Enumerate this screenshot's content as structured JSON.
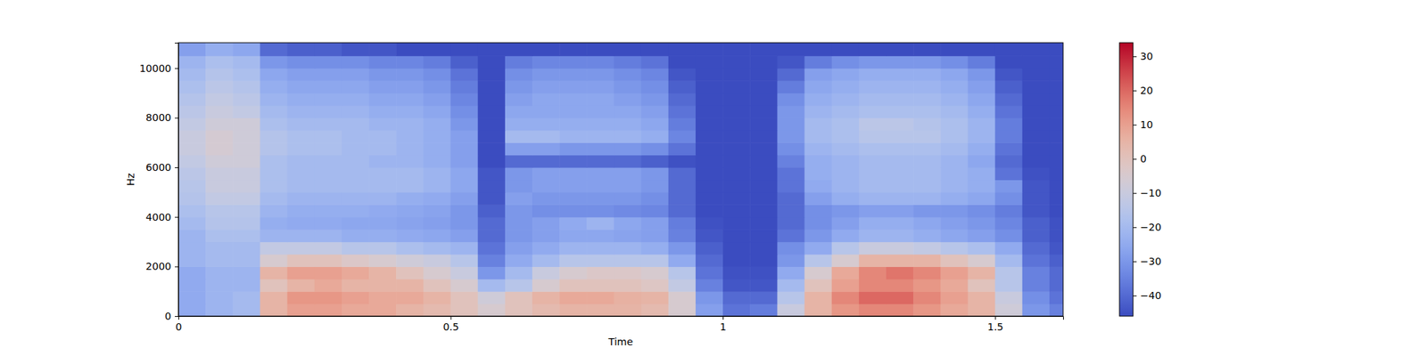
{
  "chart_data": {
    "type": "heatmap",
    "x_label": "Time",
    "y_label": "Hz",
    "xlim": [
      0,
      1.625
    ],
    "ylim": [
      0,
      11025
    ],
    "xticks": [
      0,
      0.5,
      1,
      1.5
    ],
    "yticks": [
      0,
      2000,
      4000,
      6000,
      8000,
      10000
    ],
    "color": "coolwarm",
    "time_bins": [
      0,
      0.05,
      0.1,
      0.15,
      0.2,
      0.25,
      0.3,
      0.35,
      0.4,
      0.45,
      0.5,
      0.55,
      0.6,
      0.65,
      0.7,
      0.75,
      0.8,
      0.85,
      0.9,
      0.95,
      1.0,
      1.05,
      1.1,
      1.15,
      1.2,
      1.25,
      1.3,
      1.35,
      1.4,
      1.45,
      1.5,
      1.55,
      1.6,
      1.625
    ],
    "freq_bins": [
      0,
      500,
      1000,
      1500,
      2000,
      2500,
      3000,
      3500,
      4000,
      4500,
      5000,
      5500,
      6000,
      6500,
      7000,
      7500,
      8000,
      8500,
      9000,
      9500,
      10000,
      10500,
      11025
    ],
    "z": [
      [
        -25,
        -22,
        -20,
        5,
        10,
        10,
        8,
        8,
        5,
        3,
        0,
        -5,
        0,
        3,
        5,
        5,
        5,
        3,
        -5,
        -28,
        -38,
        -36,
        -10,
        5,
        12,
        15,
        15,
        12,
        8,
        5,
        -8,
        -30,
        -35
      ],
      [
        -25,
        -22,
        -20,
        5,
        12,
        12,
        10,
        8,
        8,
        5,
        0,
        -8,
        0,
        5,
        8,
        8,
        6,
        5,
        -5,
        -30,
        -40,
        -40,
        -15,
        5,
        15,
        20,
        20,
        15,
        10,
        5,
        -10,
        -32,
        -38
      ],
      [
        -25,
        -22,
        -22,
        0,
        5,
        8,
        5,
        5,
        5,
        0,
        -5,
        -20,
        -15,
        -5,
        0,
        0,
        0,
        -2,
        -12,
        -35,
        -44,
        -44,
        -20,
        0,
        10,
        15,
        15,
        12,
        8,
        0,
        -15,
        -35,
        -40
      ],
      [
        -25,
        -22,
        -22,
        5,
        10,
        10,
        8,
        5,
        0,
        -5,
        -10,
        -30,
        -20,
        -10,
        -5,
        -3,
        -3,
        -5,
        -15,
        -38,
        -45,
        -45,
        -25,
        -5,
        8,
        15,
        18,
        15,
        10,
        5,
        -15,
        -35,
        -40
      ],
      [
        -22,
        -20,
        -20,
        -5,
        0,
        0,
        -3,
        -5,
        -8,
        -10,
        -15,
        -35,
        -25,
        -20,
        -15,
        -15,
        -15,
        -15,
        -25,
        -40,
        -46,
        -46,
        -30,
        -15,
        -5,
        5,
        5,
        5,
        0,
        -5,
        -20,
        -38,
        -42
      ],
      [
        -22,
        -20,
        -20,
        -12,
        -12,
        -12,
        -15,
        -15,
        -18,
        -20,
        -22,
        -38,
        -28,
        -25,
        -22,
        -22,
        -22,
        -24,
        -30,
        -42,
        -46,
        -46,
        -32,
        -25,
        -15,
        -10,
        -10,
        -12,
        -15,
        -18,
        -25,
        -40,
        -44
      ],
      [
        -22,
        -18,
        -18,
        -22,
        -22,
        -22,
        -24,
        -24,
        -25,
        -26,
        -28,
        -40,
        -30,
        -28,
        -26,
        -26,
        -27,
        -28,
        -35,
        -44,
        -46,
        -46,
        -38,
        -30,
        -25,
        -22,
        -22,
        -24,
        -26,
        -28,
        -32,
        -42,
        -45
      ],
      [
        -20,
        -16,
        -16,
        -24,
        -25,
        -25,
        -26,
        -26,
        -27,
        -28,
        -30,
        -40,
        -30,
        -28,
        -25,
        -22,
        -26,
        -28,
        -36,
        -45,
        -46,
        -46,
        -40,
        -32,
        -28,
        -24,
        -24,
        -26,
        -28,
        -30,
        -34,
        -42,
        -45
      ],
      [
        -18,
        -15,
        -15,
        -22,
        -24,
        -24,
        -24,
        -25,
        -26,
        -27,
        -30,
        -42,
        -30,
        -32,
        -32,
        -32,
        -33,
        -34,
        -40,
        -46,
        -46,
        -46,
        -40,
        -32,
        -30,
        -28,
        -28,
        -30,
        -30,
        -32,
        -36,
        -44,
        -46
      ],
      [
        -16,
        -12,
        -12,
        -20,
        -22,
        -22,
        -22,
        -22,
        -24,
        -25,
        -28,
        -44,
        -28,
        -30,
        -30,
        -30,
        -30,
        -32,
        -40,
        -46,
        -46,
        -46,
        -40,
        -28,
        -24,
        -22,
        -22,
        -22,
        -24,
        -26,
        -32,
        -44,
        -46
      ],
      [
        -15,
        -10,
        -10,
        -18,
        -20,
        -20,
        -20,
        -20,
        -20,
        -22,
        -26,
        -44,
        -30,
        -28,
        -28,
        -28,
        -28,
        -30,
        -40,
        -46,
        -46,
        -46,
        -38,
        -25,
        -22,
        -20,
        -20,
        -20,
        -22,
        -24,
        -30,
        -44,
        -46
      ],
      [
        -14,
        -10,
        -10,
        -18,
        -20,
        -20,
        -20,
        -20,
        -20,
        -22,
        -26,
        -44,
        -30,
        -28,
        -28,
        -28,
        -28,
        -30,
        -40,
        -46,
        -46,
        -46,
        -38,
        -24,
        -22,
        -20,
        -20,
        -20,
        -22,
        -24,
        -38,
        -45,
        -46
      ],
      [
        -12,
        -8,
        -8,
        -18,
        -20,
        -20,
        -20,
        -22,
        -22,
        -24,
        -28,
        -46,
        -40,
        -40,
        -40,
        -40,
        -40,
        -42,
        -45,
        -46,
        -46,
        -46,
        -35,
        -24,
        -22,
        -20,
        -20,
        -20,
        -22,
        -26,
        -40,
        -46,
        -46
      ],
      [
        -10,
        -6,
        -8,
        -16,
        -18,
        -18,
        -20,
        -20,
        -22,
        -24,
        -28,
        -46,
        -28,
        -28,
        -30,
        -30,
        -30,
        -32,
        -38,
        -46,
        -46,
        -46,
        -32,
        -22,
        -20,
        -18,
        -18,
        -18,
        -20,
        -24,
        -38,
        -46,
        -46
      ],
      [
        -10,
        -6,
        -8,
        -16,
        -18,
        -18,
        -20,
        -20,
        -22,
        -24,
        -28,
        -46,
        -20,
        -20,
        -22,
        -22,
        -22,
        -24,
        -34,
        -46,
        -46,
        -46,
        -30,
        -20,
        -18,
        -15,
        -15,
        -15,
        -18,
        -22,
        -36,
        -46,
        -46
      ],
      [
        -12,
        -8,
        -8,
        -18,
        -20,
        -20,
        -20,
        -22,
        -22,
        -24,
        -30,
        -46,
        -24,
        -24,
        -24,
        -24,
        -24,
        -26,
        -36,
        -46,
        -46,
        -46,
        -30,
        -20,
        -18,
        -14,
        -14,
        -16,
        -18,
        -22,
        -36,
        -46,
        -46
      ],
      [
        -14,
        -10,
        -12,
        -20,
        -22,
        -22,
        -22,
        -24,
        -24,
        -26,
        -32,
        -46,
        -26,
        -26,
        -26,
        -26,
        -26,
        -28,
        -38,
        -46,
        -46,
        -46,
        -30,
        -22,
        -20,
        -18,
        -18,
        -18,
        -20,
        -24,
        -38,
        -46,
        -46
      ],
      [
        -16,
        -12,
        -14,
        -22,
        -24,
        -24,
        -24,
        -26,
        -26,
        -28,
        -34,
        -46,
        -28,
        -26,
        -26,
        -26,
        -28,
        -30,
        -40,
        -46,
        -46,
        -46,
        -32,
        -24,
        -22,
        -20,
        -20,
        -20,
        -22,
        -26,
        -40,
        -46,
        -46
      ],
      [
        -18,
        -14,
        -16,
        -24,
        -26,
        -26,
        -26,
        -28,
        -28,
        -30,
        -36,
        -46,
        -30,
        -28,
        -28,
        -28,
        -30,
        -32,
        -42,
        -46,
        -46,
        -46,
        -36,
        -26,
        -24,
        -22,
        -22,
        -22,
        -24,
        -28,
        -42,
        -46,
        -46
      ],
      [
        -20,
        -16,
        -18,
        -26,
        -28,
        -28,
        -28,
        -30,
        -30,
        -32,
        -38,
        -46,
        -32,
        -30,
        -30,
        -30,
        -32,
        -34,
        -44,
        -46,
        -46,
        -46,
        -40,
        -28,
        -26,
        -24,
        -24,
        -24,
        -26,
        -30,
        -44,
        -46,
        -46
      ],
      [
        -22,
        -18,
        -20,
        -30,
        -32,
        -32,
        -32,
        -34,
        -34,
        -36,
        -42,
        -46,
        -36,
        -34,
        -34,
        -34,
        -36,
        -38,
        -46,
        -46,
        -46,
        -46,
        -44,
        -36,
        -32,
        -30,
        -30,
        -30,
        -32,
        -36,
        -46,
        -46,
        -46
      ],
      [
        -28,
        -24,
        -26,
        -40,
        -42,
        -42,
        -44,
        -44,
        -46,
        -46,
        -46,
        -46,
        -46,
        -46,
        -46,
        -46,
        -46,
        -46,
        -46,
        -46,
        -46,
        -46,
        -46,
        -46,
        -46,
        -46,
        -46,
        -46,
        -46,
        -46,
        -46,
        -46,
        -46
      ]
    ],
    "colorbar": {
      "range": [
        -46,
        34
      ],
      "ticks": [
        {
          "value": -40,
          "label": "−40"
        },
        {
          "value": -30,
          "label": "−30"
        },
        {
          "value": -20,
          "label": "−20"
        },
        {
          "value": -10,
          "label": "−10"
        },
        0,
        10,
        20,
        30
      ]
    }
  }
}
